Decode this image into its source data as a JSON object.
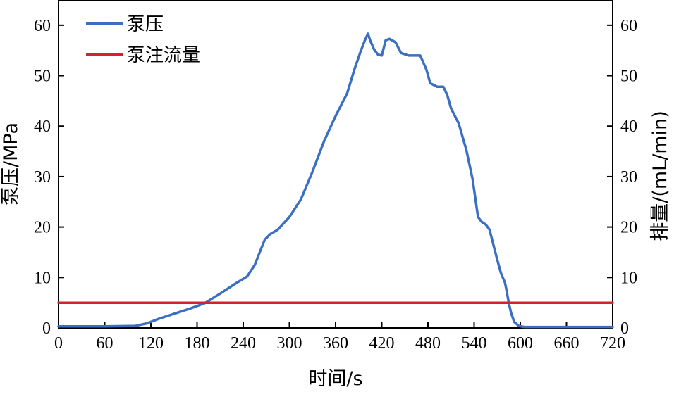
{
  "chart_data": {
    "type": "line",
    "xlabel": "时间/s",
    "ylabel_left": "泵压/MPa",
    "ylabel_right": "排量/(mL/min)",
    "xlim": [
      0,
      720
    ],
    "ylim_left": [
      0,
      65
    ],
    "ylim_right": [
      0,
      65
    ],
    "x_ticks": [
      0,
      60,
      120,
      180,
      240,
      300,
      360,
      420,
      480,
      540,
      600,
      660,
      720
    ],
    "y_ticks_left": [
      0,
      10,
      20,
      30,
      40,
      50,
      60
    ],
    "y_ticks_right": [
      0,
      10,
      20,
      30,
      40,
      50,
      60
    ],
    "legend_position": "top-left",
    "grid": false,
    "series": [
      {
        "name": "泵压",
        "color": "#3a6fc4",
        "axis": "left",
        "x": [
          0,
          20,
          60,
          100,
          115,
          130,
          150,
          170,
          190,
          210,
          230,
          245,
          255,
          262,
          268,
          275,
          285,
          300,
          315,
          330,
          345,
          360,
          375,
          385,
          393,
          398,
          402,
          405,
          410,
          415,
          420,
          425,
          430,
          438,
          445,
          455,
          470,
          478,
          483,
          492,
          500,
          505,
          510,
          520,
          530,
          538,
          545,
          550,
          555,
          560,
          565,
          570,
          575,
          580,
          582,
          585,
          588,
          592,
          598,
          605,
          620,
          660,
          720
        ],
        "y": [
          0.3,
          0.3,
          0.3,
          0.4,
          0.9,
          1.8,
          2.8,
          3.8,
          4.9,
          6.8,
          8.8,
          10.2,
          12.5,
          15.2,
          17.5,
          18.6,
          19.5,
          22,
          25.5,
          31,
          37,
          42,
          46.5,
          51.5,
          55,
          57,
          58.3,
          57,
          55.2,
          54.2,
          54,
          57,
          57.3,
          56.6,
          54.5,
          54,
          54,
          51.2,
          48.5,
          47.8,
          47.8,
          46.2,
          43.5,
          40.5,
          35.2,
          29.5,
          22,
          21,
          20.5,
          19.5,
          16.5,
          13.5,
          10.8,
          9,
          7.5,
          5,
          3,
          1.2,
          0.4,
          0.2,
          0.2,
          0.2,
          0.2
        ]
      },
      {
        "name": "泵注流量",
        "color": "#d8212d",
        "axis": "right",
        "x": [
          0,
          720
        ],
        "y": [
          5,
          5
        ]
      }
    ]
  }
}
